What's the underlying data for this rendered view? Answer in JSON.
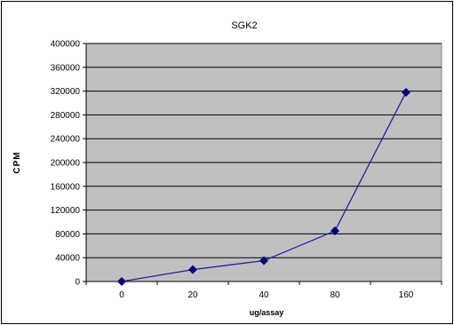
{
  "chart_data": {
    "type": "line",
    "title": "SGK2",
    "xlabel": "ug/assay",
    "ylabel": "CPM",
    "categories": [
      "0",
      "20",
      "40",
      "80",
      "160"
    ],
    "series": [
      {
        "values": [
          0,
          20000,
          35000,
          85000,
          318000
        ]
      }
    ],
    "ylim": [
      0,
      400000
    ],
    "yticks": [
      0,
      40000,
      80000,
      120000,
      160000,
      200000,
      240000,
      280000,
      320000,
      360000,
      400000
    ],
    "grid": true,
    "legend": "none",
    "colors": {
      "plot_background": "#c0c0c0",
      "gridline": "#000000",
      "series_line": "#1f1fa6",
      "marker": "#00007a"
    }
  }
}
